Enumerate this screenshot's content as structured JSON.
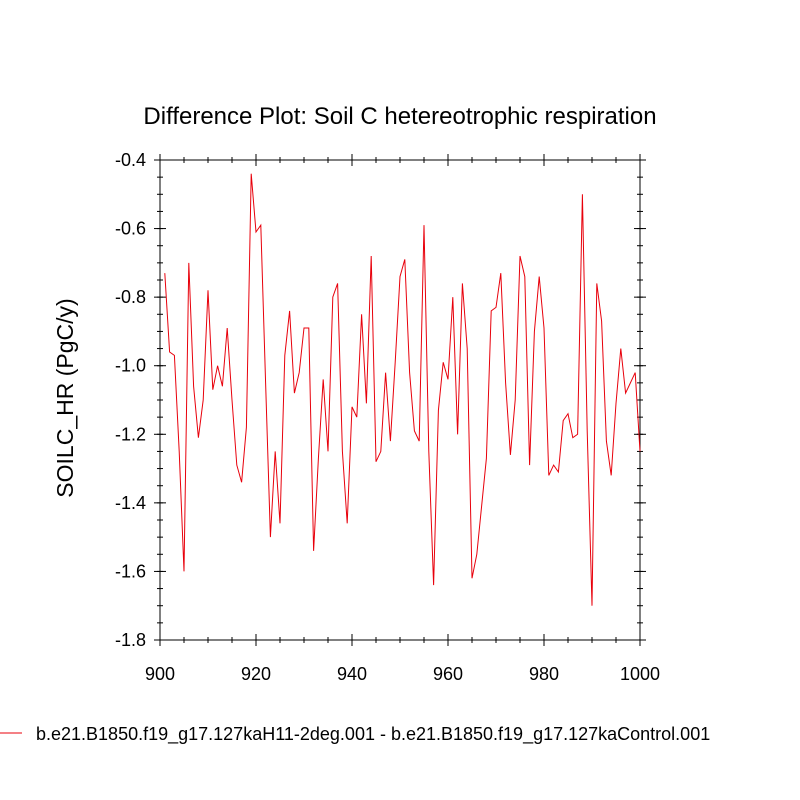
{
  "chart_data": {
    "type": "line",
    "title": "Difference Plot: Soil C hetereotrophic respiration",
    "xlabel": "",
    "ylabel": "SOILC_HR  (PgC/y)",
    "xlim": [
      900,
      1000
    ],
    "ylim": [
      -1.8,
      -0.4
    ],
    "x_ticks": [
      "900",
      "920",
      "940",
      "960",
      "980",
      "1000"
    ],
    "y_ticks": [
      "-1.8",
      "-1.6",
      "-1.4",
      "-1.2",
      "-1.0",
      "-0.8",
      "-0.6",
      "-0.4"
    ],
    "x_tick_values": [
      900,
      920,
      940,
      960,
      980,
      1000
    ],
    "y_tick_values": [
      -1.8,
      -1.6,
      -1.4,
      -1.2,
      -1.0,
      -0.8,
      -0.6,
      -0.4
    ],
    "line_color": "#e8000b",
    "series": [
      {
        "name": "b.e21.B1850.f19_g17.127kaH11-2deg.001 - b.e21.B1850.f19_g17.127kaControl.001",
        "x": [
          901,
          902,
          903,
          904,
          905,
          906,
          907,
          908,
          909,
          910,
          911,
          912,
          913,
          914,
          915,
          916,
          917,
          918,
          919,
          920,
          921,
          922,
          923,
          924,
          925,
          926,
          927,
          928,
          929,
          930,
          931,
          932,
          933,
          934,
          935,
          936,
          937,
          938,
          939,
          940,
          941,
          942,
          943,
          944,
          945,
          946,
          947,
          948,
          949,
          950,
          951,
          952,
          953,
          954,
          955,
          956,
          957,
          958,
          959,
          960,
          961,
          962,
          963,
          964,
          965,
          966,
          967,
          968,
          969,
          970,
          971,
          972,
          973,
          974,
          975,
          976,
          977,
          978,
          979,
          980,
          981,
          982,
          983,
          984,
          985,
          986,
          987,
          988,
          989,
          990,
          991,
          992,
          993,
          994,
          995,
          996,
          997,
          998,
          999,
          1000
        ],
        "values": [
          -0.73,
          -0.96,
          -0.97,
          -1.25,
          -1.6,
          -0.7,
          -1.06,
          -1.21,
          -1.1,
          -0.78,
          -1.07,
          -1.0,
          -1.06,
          -0.89,
          -1.1,
          -1.29,
          -1.34,
          -1.18,
          -0.44,
          -0.61,
          -0.59,
          -1.05,
          -1.5,
          -1.25,
          -1.46,
          -0.97,
          -0.84,
          -1.08,
          -1.02,
          -0.89,
          -0.89,
          -1.54,
          -1.27,
          -1.04,
          -1.25,
          -0.8,
          -0.76,
          -1.25,
          -1.46,
          -1.12,
          -1.15,
          -0.85,
          -1.11,
          -0.68,
          -1.28,
          -1.25,
          -1.02,
          -1.22,
          -0.99,
          -0.74,
          -0.69,
          -1.02,
          -1.19,
          -1.22,
          -0.59,
          -1.25,
          -1.64,
          -1.13,
          -0.99,
          -1.04,
          -0.8,
          -1.2,
          -0.76,
          -0.95,
          -1.62,
          -1.55,
          -1.41,
          -1.27,
          -0.84,
          -0.83,
          -0.73,
          -1.05,
          -1.26,
          -1.1,
          -0.68,
          -0.74,
          -1.29,
          -0.9,
          -0.74,
          -0.89,
          -1.32,
          -1.29,
          -1.31,
          -1.16,
          -1.14,
          -1.21,
          -1.2,
          -0.5,
          -1.19,
          -1.7,
          -0.76,
          -0.87,
          -1.22,
          -1.32,
          -1.11,
          -0.95,
          -1.08,
          -1.05,
          -1.02,
          -1.25
        ]
      }
    ]
  }
}
